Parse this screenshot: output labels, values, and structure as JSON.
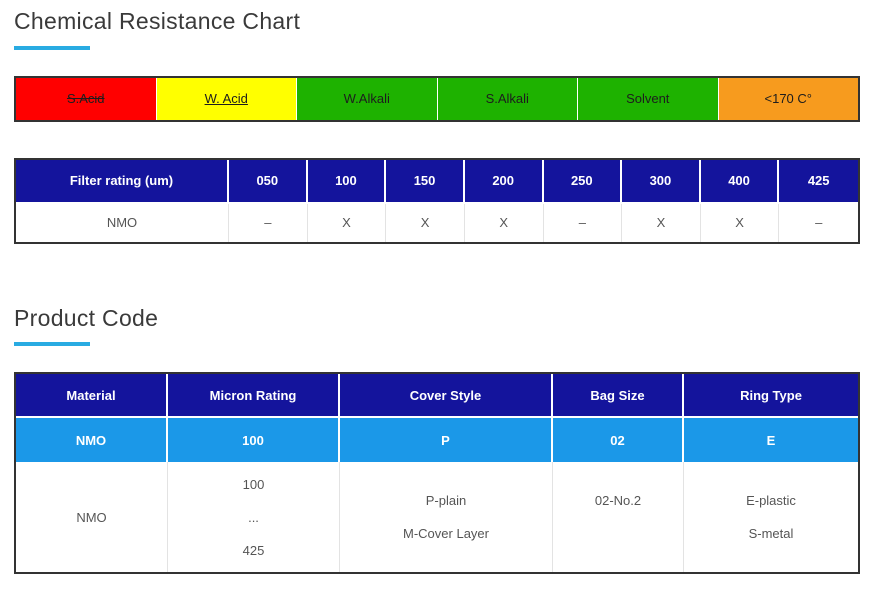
{
  "colors": {
    "accent": "#29abe2",
    "table_header_navy": "#14149c",
    "product_code_row_blue": "#1b98e8",
    "legend_red": "#ff0000",
    "legend_yellow": "#ffff00",
    "legend_green": "#1eb200",
    "legend_orange": "#f79b1e",
    "outer_border": "#333333"
  },
  "chemical_resistance": {
    "title": "Chemical Resistance Chart",
    "legend": [
      {
        "label": "S.Acid",
        "color": "#ff0000",
        "style": "strikethrough"
      },
      {
        "label": "W. Acid",
        "color": "#ffff00",
        "style": "underline"
      },
      {
        "label": "W.Alkali",
        "color": "#1eb200",
        "style": "none"
      },
      {
        "label": "S.Alkali",
        "color": "#1eb200",
        "style": "none"
      },
      {
        "label": "Solvent",
        "color": "#1eb200",
        "style": "none"
      },
      {
        "label": "<170 C°",
        "color": "#f79b1e",
        "style": "none"
      }
    ],
    "filter_table": {
      "headers": [
        "Filter rating (um)",
        "050",
        "100",
        "150",
        "200",
        "250",
        "300",
        "400",
        "425"
      ],
      "row": {
        "material": "NMO",
        "values": [
          "–",
          "X",
          "X",
          "X",
          "–",
          "X",
          "X",
          "–"
        ]
      }
    }
  },
  "product_code": {
    "title": "Product Code",
    "table": {
      "headers": [
        "Material",
        "Micron Rating",
        "Cover Style",
        "Bag Size",
        "Ring Type"
      ],
      "code_row": [
        "NMO",
        "100",
        "P",
        "02",
        "E"
      ],
      "detail_row": {
        "material": [
          "NMO"
        ],
        "micron_rating": [
          "100",
          "...",
          "425"
        ],
        "cover_style": [
          "P-plain",
          "M-Cover Layer"
        ],
        "bag_size": [
          "02-No.2",
          ""
        ],
        "ring_type": [
          "E-plastic",
          "S-metal"
        ]
      }
    }
  }
}
